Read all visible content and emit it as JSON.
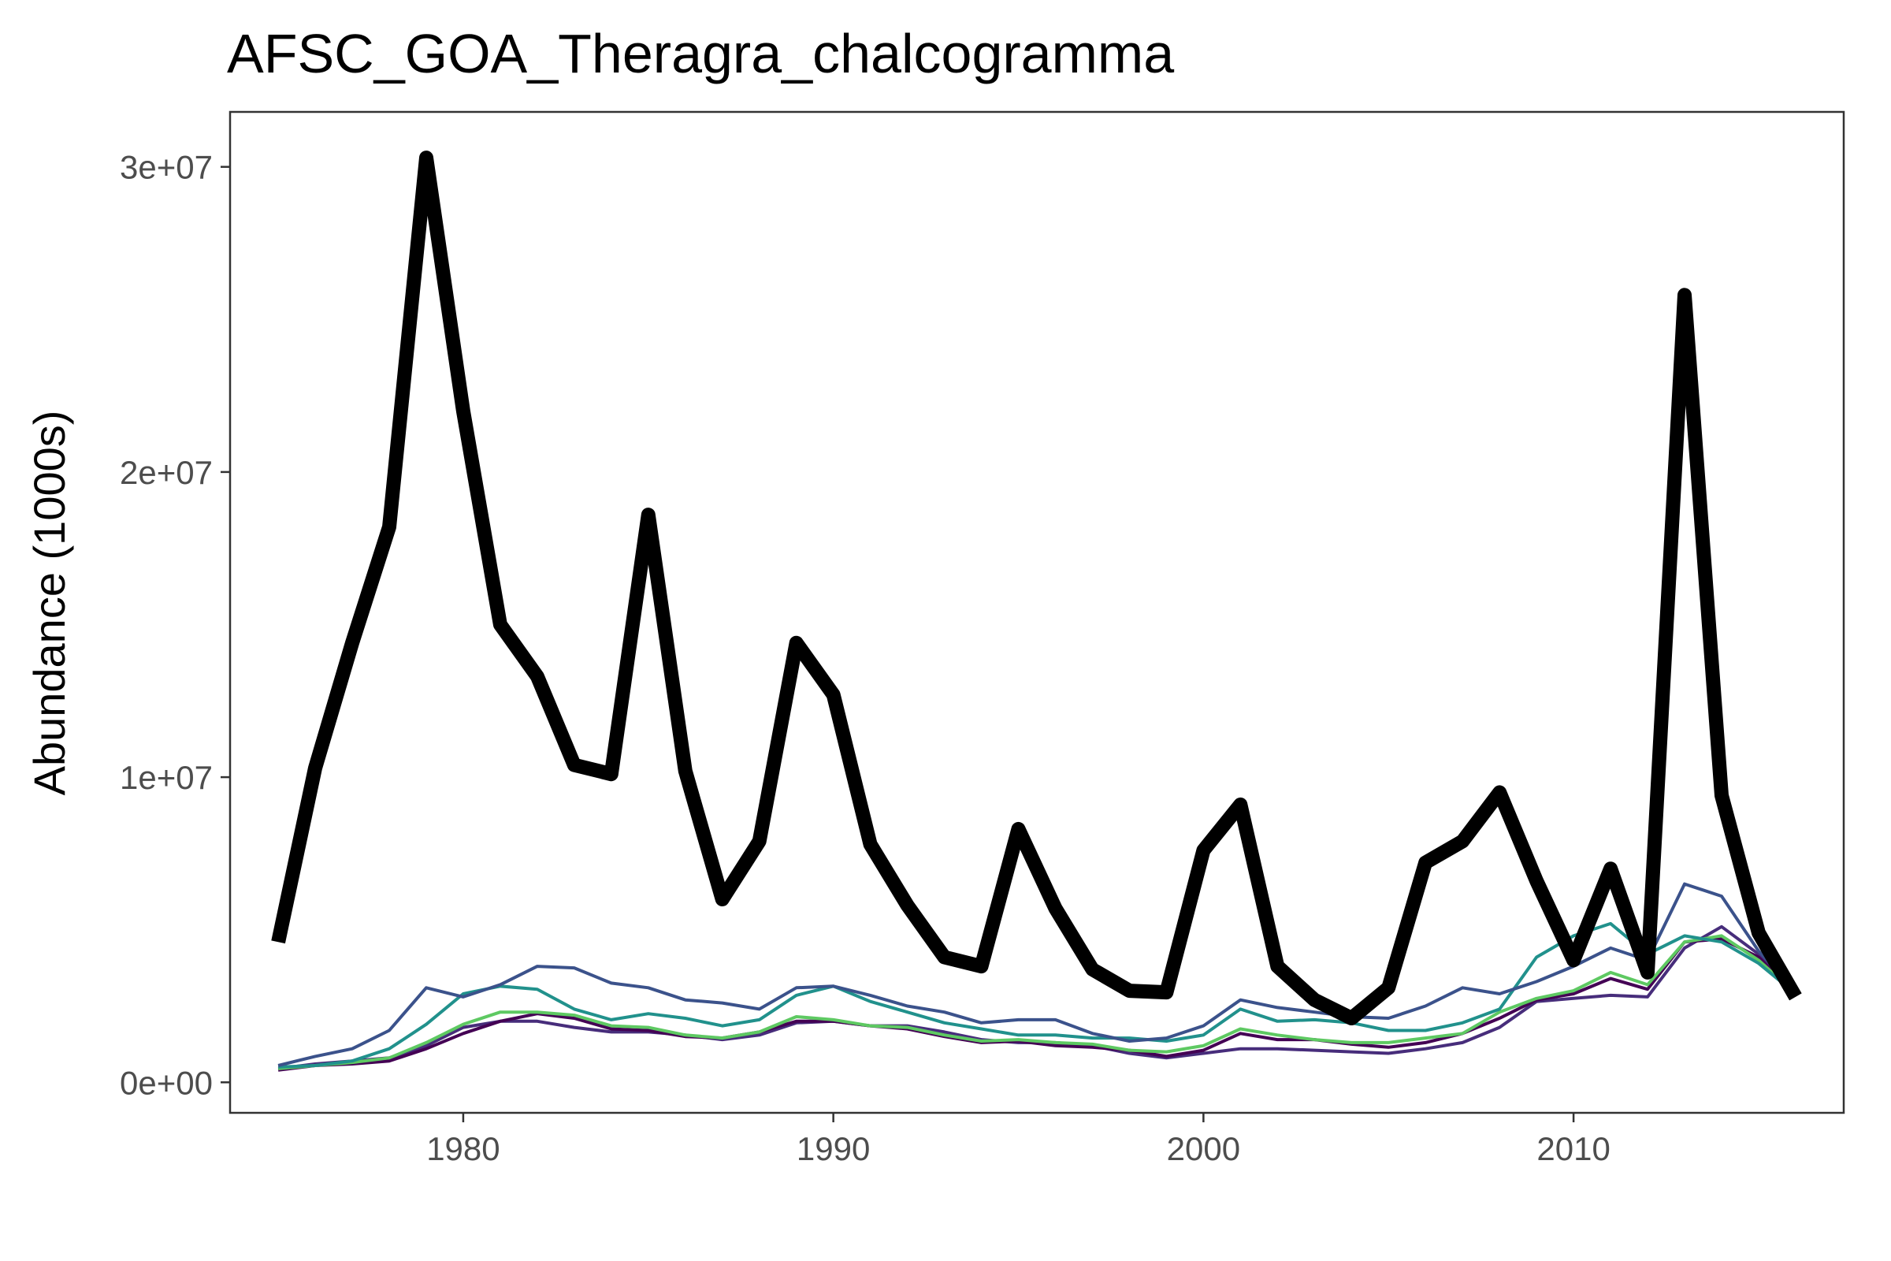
{
  "chart_data": {
    "type": "line",
    "title": "AFSC_GOA_Theragra_chalcogramma",
    "xlabel": "",
    "ylabel": "Abundance (1000s)",
    "xlim": [
      1973.7,
      2017.3
    ],
    "ylim": [
      -1000000,
      31800000
    ],
    "x_ticks": [
      1980,
      1990,
      2000,
      2010
    ],
    "x_tick_labels": [
      "1980",
      "1990",
      "2000",
      "2010"
    ],
    "y_ticks": [
      0,
      10000000,
      20000000,
      30000000
    ],
    "y_tick_labels": [
      "0e+00",
      "1e+07",
      "2e+07",
      "3e+07"
    ],
    "grid": false,
    "legend": "none",
    "x": [
      1975,
      1976,
      1977,
      1978,
      1979,
      1980,
      1981,
      1982,
      1983,
      1984,
      1985,
      1986,
      1987,
      1988,
      1989,
      1990,
      1991,
      1992,
      1993,
      1994,
      1995,
      1996,
      1997,
      1998,
      1999,
      2000,
      2001,
      2002,
      2003,
      2004,
      2005,
      2006,
      2007,
      2008,
      2009,
      2010,
      2011,
      2012,
      2013,
      2014,
      2015,
      2016
    ],
    "series": [
      {
        "color": "#000000",
        "width": 18,
        "values": [
          4600000,
          10300000,
          14400000,
          18200000,
          30300000,
          22000000,
          15000000,
          13300000,
          10400000,
          10100000,
          18600000,
          10200000,
          6000000,
          7900000,
          14400000,
          12700000,
          7800000,
          5800000,
          4100000,
          3800000,
          8300000,
          5700000,
          3700000,
          3000000,
          2950000,
          7600000,
          9100000,
          3800000,
          2700000,
          2100000,
          3100000,
          7200000,
          7900000,
          9500000,
          6600000,
          4000000,
          7000000,
          3600000,
          25800000,
          9400000,
          4900000,
          2800000
        ]
      },
      {
        "color": "#3b528b",
        "width": 4,
        "values": [
          550000,
          850000,
          1100000,
          1700000,
          3100000,
          2800000,
          3200000,
          3800000,
          3750000,
          3250000,
          3100000,
          2700000,
          2600000,
          2400000,
          3100000,
          3150000,
          2850000,
          2500000,
          2300000,
          1950000,
          2050000,
          2050000,
          1600000,
          1350000,
          1450000,
          1850000,
          2700000,
          2450000,
          2300000,
          2150000,
          2100000,
          2500000,
          3100000,
          2900000,
          3300000,
          3800000,
          4400000,
          4000000,
          6500000,
          6100000,
          4300000,
          3000000
        ]
      },
      {
        "color": "#21918c",
        "width": 4,
        "values": [
          500000,
          550000,
          700000,
          1100000,
          1900000,
          2900000,
          3150000,
          3050000,
          2400000,
          2050000,
          2250000,
          2100000,
          1850000,
          2050000,
          2850000,
          3150000,
          2650000,
          2300000,
          1950000,
          1750000,
          1550000,
          1550000,
          1450000,
          1450000,
          1350000,
          1550000,
          2400000,
          2000000,
          2050000,
          1950000,
          1700000,
          1700000,
          1950000,
          2400000,
          4100000,
          4800000,
          5200000,
          4200000,
          4800000,
          4600000,
          3900000,
          2900000
        ]
      },
      {
        "color": "#5ec962",
        "width": 4,
        "values": [
          450000,
          550000,
          650000,
          800000,
          1300000,
          1900000,
          2300000,
          2300000,
          2200000,
          1850000,
          1800000,
          1550000,
          1450000,
          1650000,
          2150000,
          2050000,
          1850000,
          1800000,
          1550000,
          1350000,
          1400000,
          1300000,
          1250000,
          1050000,
          1000000,
          1200000,
          1750000,
          1550000,
          1400000,
          1300000,
          1300000,
          1450000,
          1600000,
          2300000,
          2750000,
          3000000,
          3600000,
          3200000,
          4600000,
          4800000,
          4000000,
          2900000
        ]
      },
      {
        "color": "#440154",
        "width": 4,
        "values": [
          400000,
          550000,
          600000,
          700000,
          1100000,
          1600000,
          2000000,
          2250000,
          2100000,
          1750000,
          1700000,
          1500000,
          1450000,
          1650000,
          2000000,
          2000000,
          1850000,
          1750000,
          1500000,
          1300000,
          1350000,
          1200000,
          1150000,
          1050000,
          850000,
          1050000,
          1600000,
          1400000,
          1400000,
          1250000,
          1150000,
          1300000,
          1600000,
          2100000,
          2700000,
          2900000,
          3400000,
          3050000,
          4600000,
          4700000,
          4100000,
          2900000
        ]
      },
      {
        "color": "#472d7b",
        "width": 4,
        "values": [
          450000,
          600000,
          700000,
          800000,
          1200000,
          1800000,
          2000000,
          2000000,
          1800000,
          1650000,
          1650000,
          1550000,
          1400000,
          1550000,
          1950000,
          2000000,
          1850000,
          1850000,
          1650000,
          1400000,
          1300000,
          1300000,
          1200000,
          950000,
          800000,
          950000,
          1100000,
          1100000,
          1050000,
          1000000,
          950000,
          1100000,
          1300000,
          1800000,
          2650000,
          2750000,
          2850000,
          2800000,
          4400000,
          5100000,
          4200000,
          2900000
        ]
      }
    ]
  }
}
